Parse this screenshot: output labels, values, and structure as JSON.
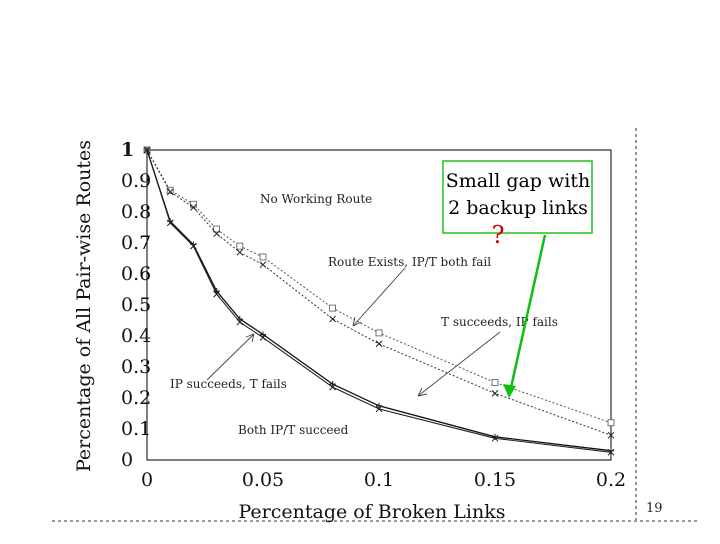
{
  "slide": {
    "page_number": "19"
  },
  "annotation": {
    "line1": "Small gap with",
    "line2": "2 backup links",
    "question_mark": "?",
    "box_color": "#21c121",
    "arrow_color": "#10c010",
    "question_color": "#cc0000"
  },
  "chart_data": {
    "type": "line",
    "title": "",
    "xlabel": "Percentage of Broken Links",
    "ylabel": "Percentage of All Pair-wise Routes",
    "xlim": [
      0,
      0.2
    ],
    "ylim": [
      0,
      1
    ],
    "x_ticks": [
      "0",
      "0.05",
      "0.1",
      "0.15",
      "0.2"
    ],
    "y_ticks": [
      "0",
      "0.1",
      "0.2",
      "0.3",
      "0.4",
      "0.5",
      "0.6",
      "0.7",
      "0.8",
      "0.9",
      "1"
    ],
    "x": [
      0,
      0.01,
      0.02,
      0.03,
      0.04,
      0.05,
      0.08,
      0.1,
      0.15,
      0.2
    ],
    "series": [
      {
        "name": "Route exists (upper)",
        "marker": "square",
        "values": [
          1.0,
          0.87,
          0.825,
          0.745,
          0.69,
          0.655,
          0.49,
          0.41,
          0.25,
          0.12
        ]
      },
      {
        "name": "T succeeds (upper)",
        "marker": "x",
        "values": [
          1.0,
          0.865,
          0.815,
          0.73,
          0.67,
          0.63,
          0.455,
          0.375,
          0.215,
          0.08
        ]
      },
      {
        "name": "IP succeeds (lower)",
        "marker": "plus",
        "values": [
          1.0,
          0.77,
          0.695,
          0.545,
          0.455,
          0.405,
          0.245,
          0.175,
          0.075,
          0.03
        ]
      },
      {
        "name": "Both succeed (lower)",
        "marker": "x",
        "values": [
          1.0,
          0.765,
          0.69,
          0.535,
          0.445,
          0.395,
          0.235,
          0.165,
          0.07,
          0.025
        ]
      }
    ],
    "region_labels": {
      "no_working_route": "No Working Route",
      "route_exists": "Route Exists, IP/T both fail",
      "t_succeeds": "T succeeds, IP fails",
      "ip_succeeds": "IP succeeds, T fails",
      "both_succeed": "Both IP/T succeed"
    }
  }
}
